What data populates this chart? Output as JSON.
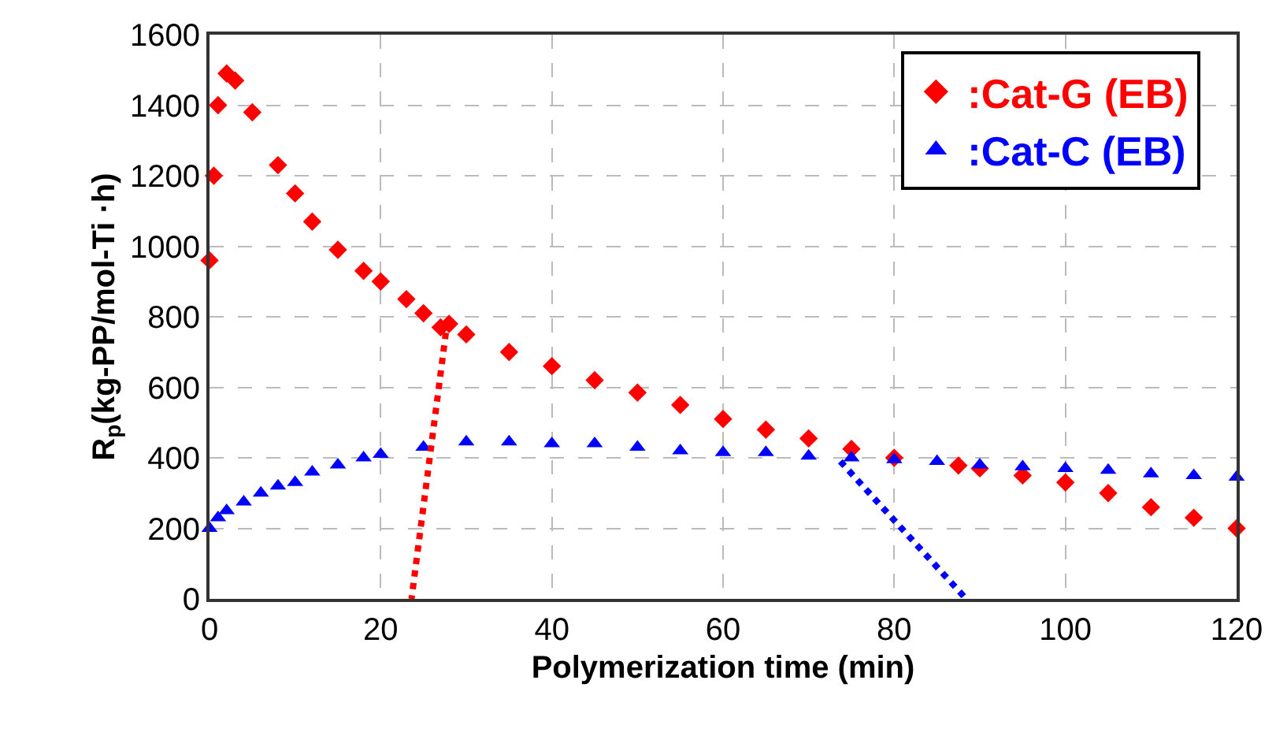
{
  "chart_data": {
    "type": "scatter",
    "xlabel": "Polymerization time (min)",
    "ylabel": "R$_{p}$(kg-PP/mol-Ti ·h)",
    "xlim": [
      0,
      120
    ],
    "ylim": [
      0,
      1600
    ],
    "xticks": [
      0,
      20,
      40,
      60,
      80,
      100,
      120
    ],
    "yticks": [
      0,
      200,
      400,
      600,
      800,
      1000,
      1200,
      1400,
      1600
    ],
    "grid": true,
    "legend": "top right",
    "series": [
      {
        "name": ":Cat-G (EB)",
        "color": "#ff0000",
        "marker": "diamond",
        "x": [
          0,
          0.5,
          1,
          2,
          3,
          5,
          8,
          10,
          12,
          15,
          18,
          20,
          23,
          25,
          27,
          28,
          30,
          35,
          40,
          45,
          50,
          55,
          60,
          65,
          70,
          75,
          80,
          87.5,
          90,
          95,
          100,
          105,
          110,
          115,
          120
        ],
        "values": [
          960,
          1200,
          1400,
          1490,
          1470,
          1380,
          1230,
          1150,
          1070,
          990,
          930,
          900,
          850,
          810,
          770,
          780,
          750,
          700,
          660,
          620,
          585,
          550,
          510,
          480,
          455,
          425,
          400,
          378,
          370,
          350,
          330,
          300,
          260,
          230,
          200
        ]
      },
      {
        "name": ":Cat-C (EB)",
        "color": "#0000ff",
        "marker": "triangle",
        "x": [
          0,
          1,
          2,
          4,
          6,
          8,
          10,
          12,
          15,
          18,
          20,
          25,
          30,
          35,
          40,
          45,
          50,
          55,
          60,
          65,
          70,
          75,
          80,
          85,
          90,
          95,
          100,
          105,
          110,
          115,
          120
        ],
        "values": [
          200,
          230,
          250,
          275,
          300,
          320,
          330,
          360,
          380,
          400,
          410,
          430,
          445,
          445,
          440,
          440,
          430,
          420,
          415,
          415,
          405,
          400,
          395,
          390,
          380,
          375,
          370,
          365,
          355,
          350,
          345
        ]
      },
      {
        "type": "line",
        "color": "#ff0000",
        "line_style": "dotted",
        "x": [
          27.8,
          23.6
        ],
        "values": [
          790,
          0
        ]
      },
      {
        "type": "line",
        "color": "#0000ff",
        "line_style": "dotted",
        "x": [
          73.7,
          88.4
        ],
        "values": [
          390,
          0
        ]
      }
    ]
  }
}
